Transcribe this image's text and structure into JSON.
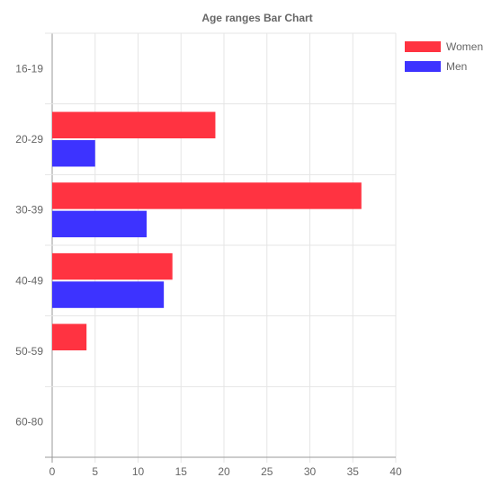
{
  "chart_data": {
    "type": "bar",
    "orientation": "horizontal",
    "title": "Age ranges Bar Chart",
    "categories": [
      "16-19",
      "20-29",
      "30-39",
      "40-49",
      "50-59",
      "60-80"
    ],
    "series": [
      {
        "name": "Women",
        "values": [
          0,
          19,
          36,
          14,
          4,
          0
        ],
        "color": "#ff3341"
      },
      {
        "name": "Men",
        "values": [
          0,
          5,
          11,
          13,
          0,
          0
        ],
        "color": "#3d33ff"
      }
    ],
    "xlim": [
      0,
      40
    ],
    "xticks": [
      "0",
      "5",
      "10",
      "15",
      "20",
      "25",
      "30",
      "35",
      "40"
    ],
    "grid": true,
    "legend_position": "top-right"
  }
}
